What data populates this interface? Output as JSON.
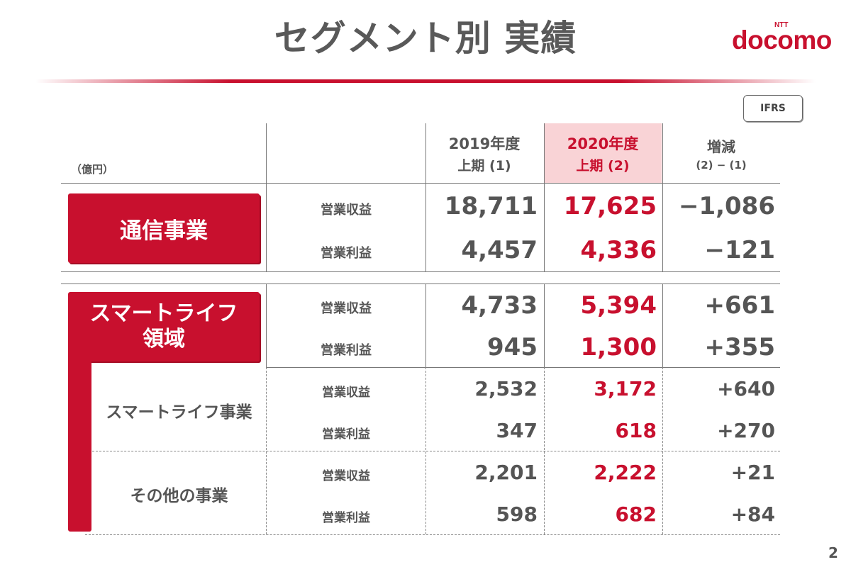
{
  "title": "セグメント別 実績",
  "logo": {
    "sup": "NTT",
    "word": "docomo"
  },
  "ifrs_label": "IFRS",
  "unit": "（億円）",
  "columns": {
    "y2019": {
      "line1": "2019年度",
      "line2": "上期 (1)"
    },
    "y2020": {
      "line1": "2020年度",
      "line2": "上期 (2)"
    },
    "diff": {
      "line1": "増減",
      "line2": "(2) − (1)"
    }
  },
  "segments": {
    "telecom": {
      "name": "通信事業",
      "revenue": {
        "label": "営業収益",
        "y2019": "18,711",
        "y2020": "17,625",
        "diff": "−1,086"
      },
      "profit": {
        "label": "営業利益",
        "y2019": "4,457",
        "y2020": "4,336",
        "diff": "−121"
      }
    },
    "smartlife": {
      "name_line1": "スマートライフ",
      "name_line2": "領域",
      "revenue": {
        "label": "営業収益",
        "y2019": "4,733",
        "y2020": "5,394",
        "diff": "+661"
      },
      "profit": {
        "label": "営業利益",
        "y2019": "945",
        "y2020": "1,300",
        "diff": "+355"
      }
    },
    "smartlife_business": {
      "name": "スマートライフ事業",
      "revenue": {
        "label": "営業収益",
        "y2019": "2,532",
        "y2020": "3,172",
        "diff": "+640"
      },
      "profit": {
        "label": "営業利益",
        "y2019": "347",
        "y2020": "618",
        "diff": "+270"
      }
    },
    "other_business": {
      "name": "その他の事業",
      "revenue": {
        "label": "営業収益",
        "y2019": "2,201",
        "y2020": "2,222",
        "diff": "+21"
      },
      "profit": {
        "label": "営業利益",
        "y2019": "598",
        "y2020": "682",
        "diff": "+84"
      }
    }
  },
  "page_number": "2",
  "colors": {
    "accent": "#c8102e",
    "highlight": "#f9d3d6",
    "text": "#555555"
  }
}
